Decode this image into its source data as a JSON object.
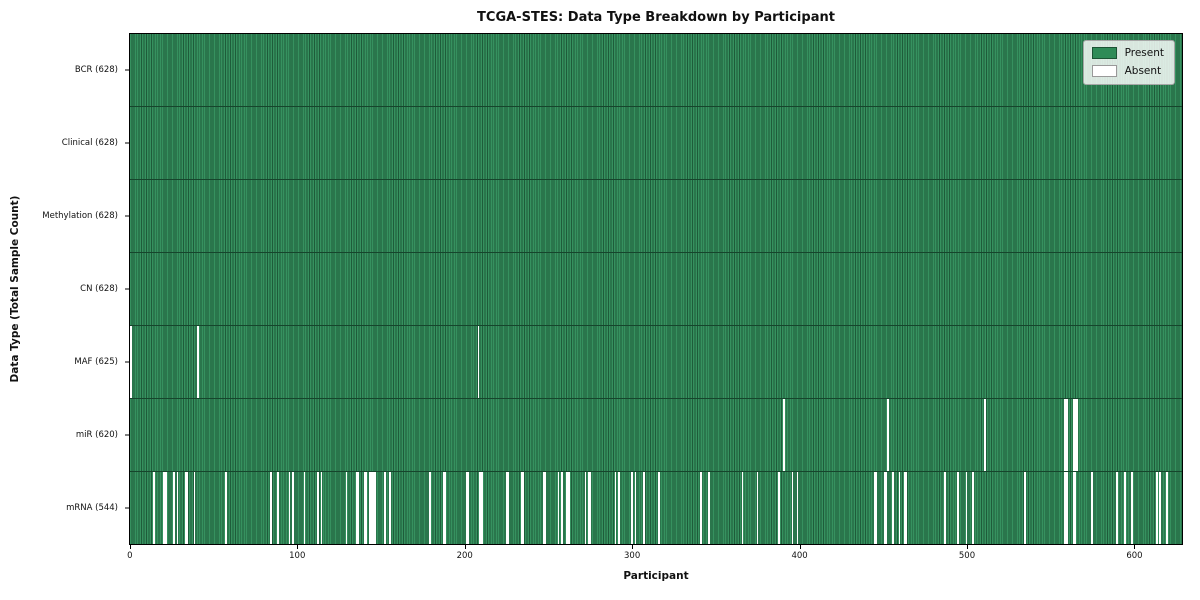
{
  "chart_data": {
    "type": "heatmap",
    "title": "TCGA-STES: Data Type Breakdown by Participant",
    "xlabel": "Participant",
    "ylabel": "Data Type (Total Sample Count)",
    "x_ticks": [
      0,
      100,
      200,
      300,
      400,
      500,
      600
    ],
    "x_axis_max": 629.5,
    "participants_total": 628,
    "grid": false,
    "legend_position": "upper right",
    "legend_items": [
      {
        "label": "Present",
        "color": "#2e8b57"
      },
      {
        "label": "Absent",
        "color": "#ffffff"
      }
    ],
    "colors": {
      "present": "#2e8b57",
      "present_edge": "#1e5c3a",
      "absent": "#ffffff",
      "row_separator": "#16452c"
    },
    "rows": [
      {
        "data_type": "BCR",
        "label": "BCR (628)",
        "present_count": 628,
        "absent_count": 0,
        "absent_participants": []
      },
      {
        "data_type": "Clinical",
        "label": "Clinical (628)",
        "present_count": 628,
        "absent_count": 0,
        "absent_participants": []
      },
      {
        "data_type": "Methylation",
        "label": "Methylation (628)",
        "present_count": 628,
        "absent_count": 0,
        "absent_participants": []
      },
      {
        "data_type": "CN",
        "label": "CN (628)",
        "present_count": 628,
        "absent_count": 0,
        "absent_participants": []
      },
      {
        "data_type": "MAF",
        "label": "MAF (625)",
        "present_count": 625,
        "absent_count": 3,
        "absent_participants": [
          0,
          40,
          208
        ]
      },
      {
        "data_type": "miR",
        "label": "miR (620)",
        "present_count": 620,
        "absent_count": 8,
        "absent_participants": [
          391,
          453,
          511,
          559,
          560,
          564,
          565,
          566
        ]
      },
      {
        "data_type": "mRNA",
        "label": "mRNA (544)",
        "present_count": 544,
        "absent_count": 84,
        "absent_participants": [
          14,
          20,
          21,
          26,
          28,
          33,
          34,
          38,
          57,
          84,
          88,
          95,
          97,
          104,
          112,
          114,
          129,
          135,
          136,
          140,
          141,
          143,
          144,
          145,
          146,
          152,
          155,
          179,
          187,
          188,
          201,
          202,
          209,
          210,
          225,
          226,
          234,
          235,
          247,
          248,
          256,
          258,
          261,
          262,
          272,
          274,
          275,
          290,
          292,
          300,
          302,
          307,
          316,
          341,
          346,
          366,
          375,
          388,
          396,
          399,
          445,
          446,
          451,
          452,
          456,
          460,
          463,
          464,
          487,
          495,
          500,
          504,
          535,
          559,
          560,
          564,
          565,
          575,
          590,
          595,
          599,
          614,
          616,
          620
        ]
      }
    ]
  }
}
